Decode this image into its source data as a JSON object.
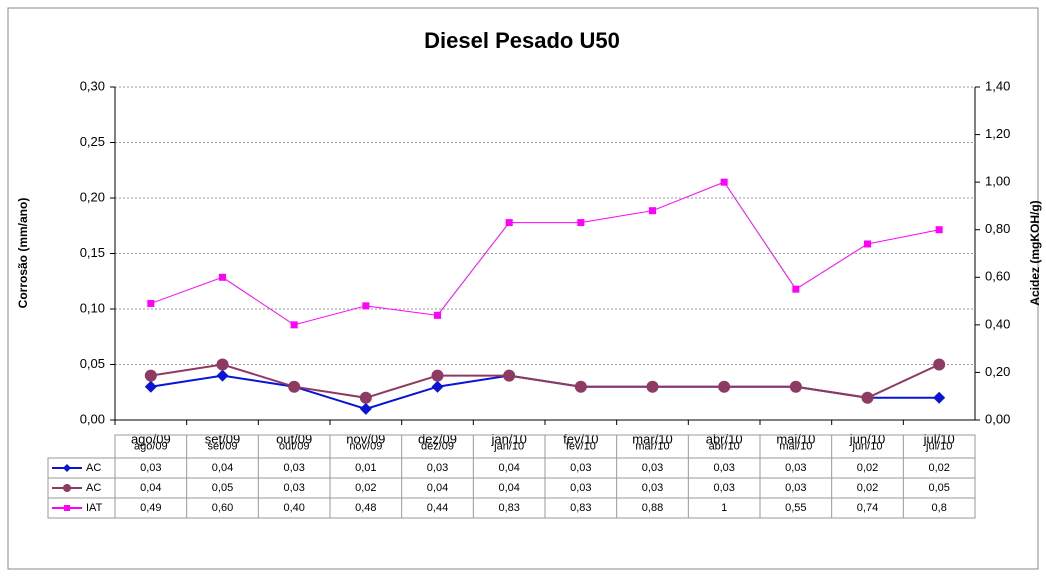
{
  "chart_data": {
    "type": "line",
    "title": "Diesel Pesado U50",
    "y_label": "Corrosão (mm/ano)",
    "y2_label": "Acidez (mgKOH/g)",
    "categories": [
      "ago/09",
      "set/09",
      "out/09",
      "nov/09",
      "dez/09",
      "jan/10",
      "fev/10",
      "mar/10",
      "abr/10",
      "mai/10",
      "jun/10",
      "jul/10"
    ],
    "ylim": [
      0,
      0.3
    ],
    "yticks": [
      {
        "value": 0,
        "label": "0,00"
      },
      {
        "value": 0.05,
        "label": "0,05"
      },
      {
        "value": 0.1,
        "label": "0,10"
      },
      {
        "value": 0.15,
        "label": "0,15"
      },
      {
        "value": 0.2,
        "label": "0,20"
      },
      {
        "value": 0.25,
        "label": "0,25"
      },
      {
        "value": 0.3,
        "label": "0,30"
      }
    ],
    "y2lim": [
      0,
      1.4
    ],
    "y2ticks": [
      {
        "value": 0,
        "label": "0,00"
      },
      {
        "value": 0.2,
        "label": "0,20"
      },
      {
        "value": 0.4,
        "label": "0,40"
      },
      {
        "value": 0.6,
        "label": "0,60"
      },
      {
        "value": 0.8,
        "label": "0,80"
      },
      {
        "value": 1.0,
        "label": "1,00"
      },
      {
        "value": 1.2,
        "label": "1,20"
      },
      {
        "value": 1.4,
        "label": "1,40"
      }
    ],
    "grid": true,
    "series": [
      {
        "name": "AC",
        "color": "#0a14d6",
        "marker": "diamond",
        "axis": "y",
        "values": [
          0.03,
          0.04,
          0.03,
          0.01,
          0.03,
          0.04,
          0.03,
          0.03,
          0.03,
          0.03,
          0.02,
          0.02
        ],
        "value_labels": [
          "0,03",
          "0,04",
          "0,03",
          "0,01",
          "0,03",
          "0,04",
          "0,03",
          "0,03",
          "0,03",
          "0,03",
          "0,02",
          "0,02"
        ]
      },
      {
        "name": "AC",
        "color": "#8e3a62",
        "marker": "circle",
        "axis": "y",
        "values": [
          0.04,
          0.05,
          0.03,
          0.02,
          0.04,
          0.04,
          0.03,
          0.03,
          0.03,
          0.03,
          0.02,
          0.05
        ],
        "value_labels": [
          "0,04",
          "0,05",
          "0,03",
          "0,02",
          "0,04",
          "0,04",
          "0,03",
          "0,03",
          "0,03",
          "0,03",
          "0,02",
          "0,05"
        ]
      },
      {
        "name": "IAT",
        "color": "#ff00ff",
        "marker": "square",
        "axis": "y2",
        "values": [
          0.49,
          0.6,
          0.4,
          0.48,
          0.44,
          0.83,
          0.83,
          0.88,
          1,
          0.55,
          0.74,
          0.8
        ],
        "value_labels": [
          "0,49",
          "0,60",
          "0,40",
          "0,48",
          "0,44",
          "0,83",
          "0,83",
          "0,88",
          "1",
          "0,55",
          "0,74",
          "0,8"
        ]
      }
    ]
  }
}
